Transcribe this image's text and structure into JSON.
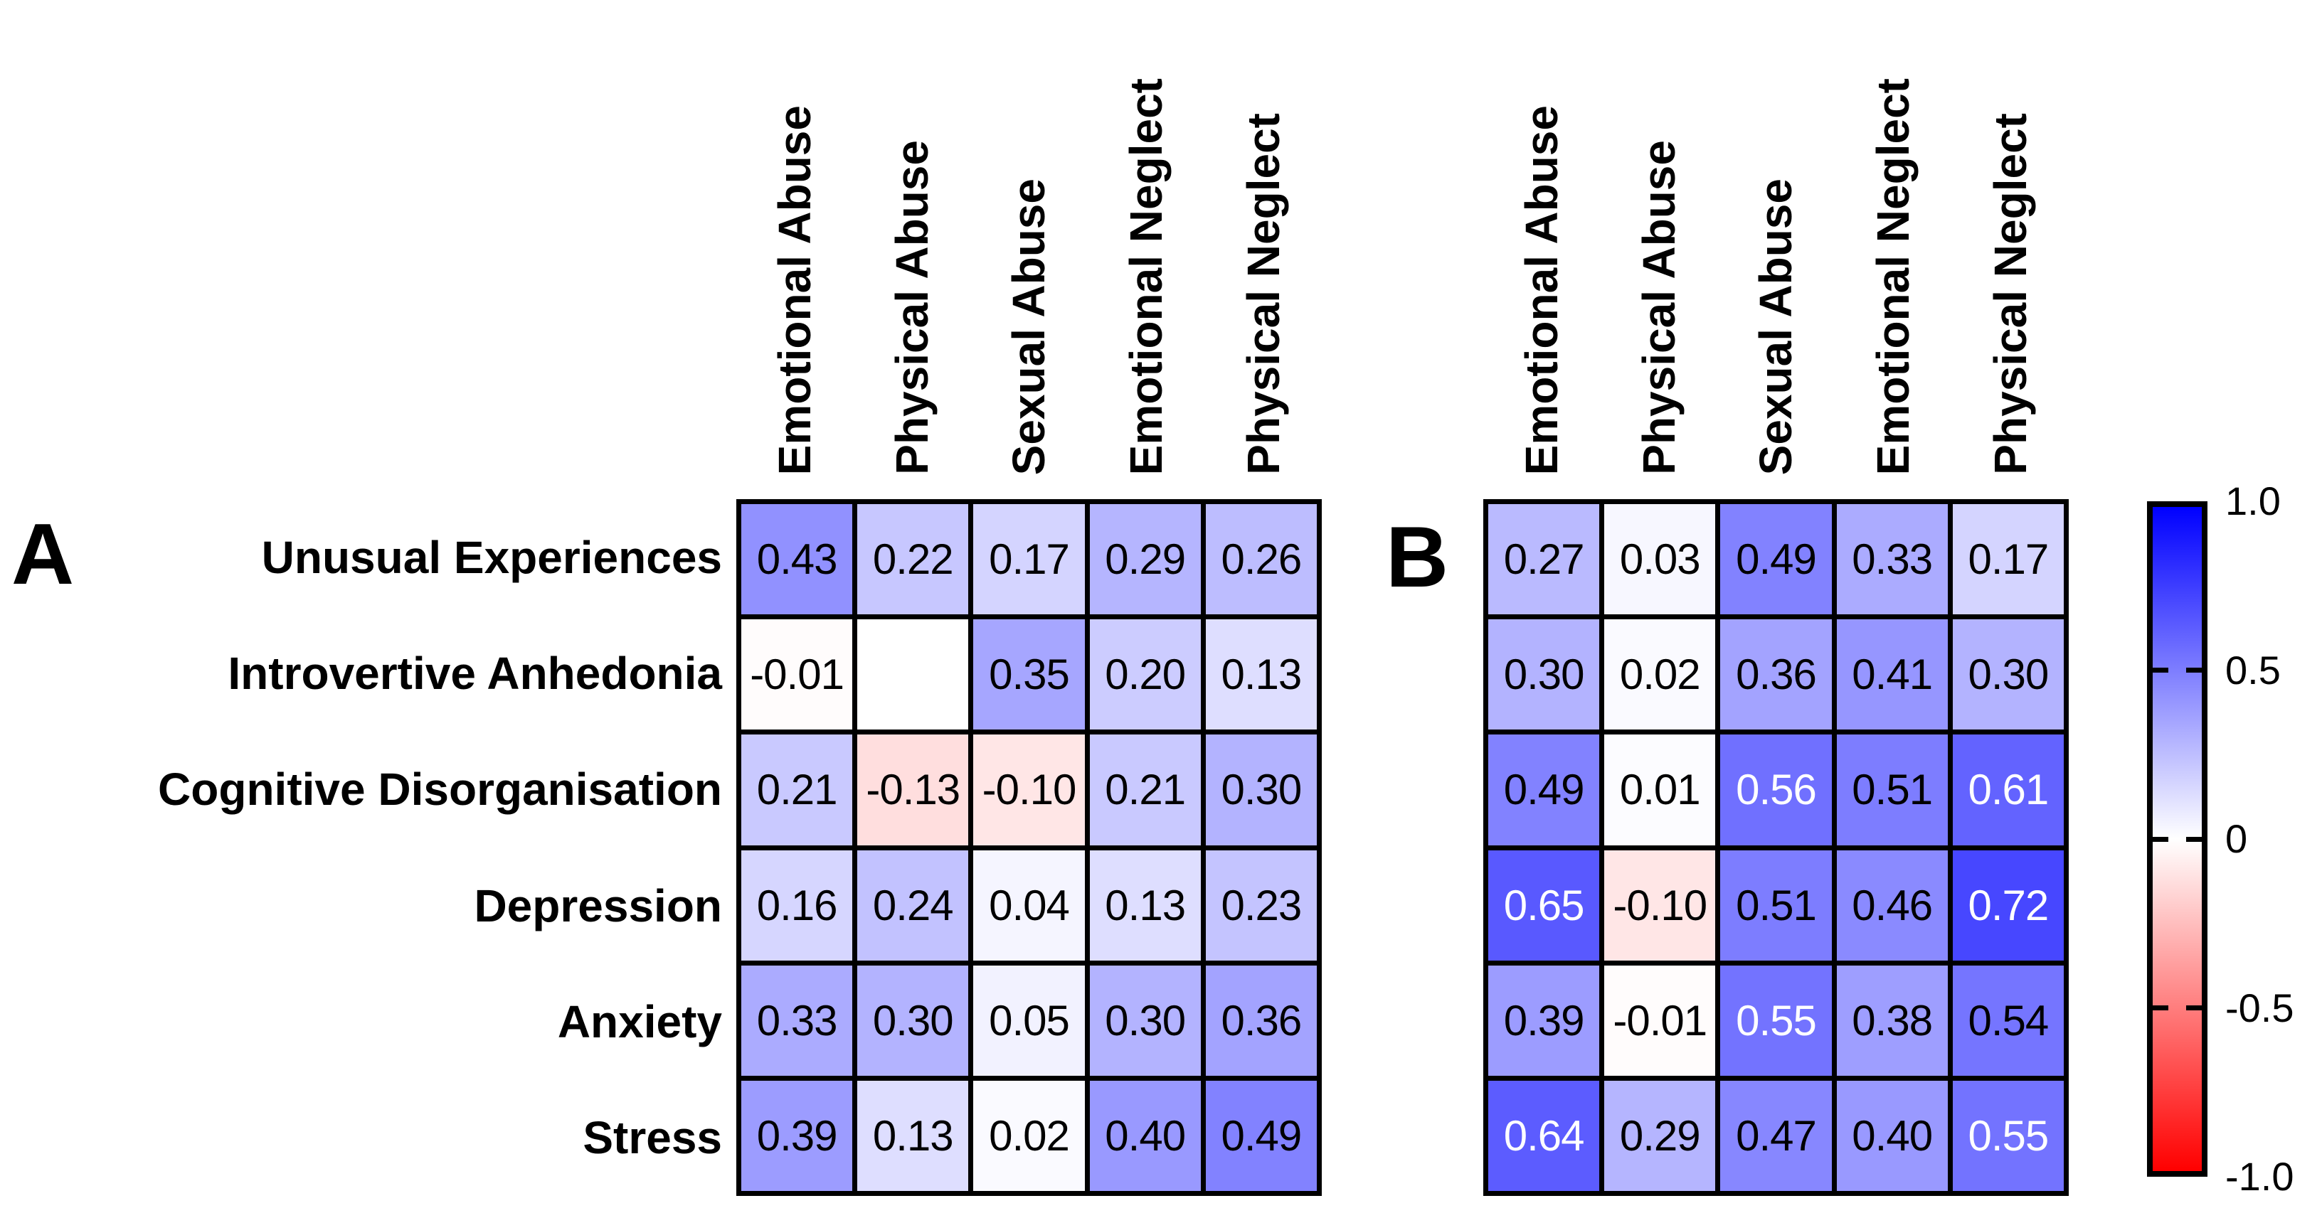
{
  "figure_type": "correlation-heatmap-figure",
  "panel_letters": {
    "a": "A",
    "b": "B"
  },
  "chart_data": [
    {
      "type": "heatmap",
      "panel_label": "A",
      "x_categories": [
        "Emotional Abuse",
        "Physical Abuse",
        "Sexual Abuse",
        "Emotional Neglect",
        "Physical Neglect"
      ],
      "y_categories": [
        "Unusual Experiences",
        "Introvertive Anhedonia",
        "Cognitive Disorganisation",
        "Depression",
        "Anxiety",
        "Stress"
      ],
      "values": [
        [
          0.43,
          0.22,
          0.17,
          0.29,
          0.26
        ],
        [
          -0.01,
          null,
          0.35,
          0.2,
          0.13
        ],
        [
          0.21,
          -0.13,
          -0.1,
          0.21,
          0.3
        ],
        [
          0.16,
          0.24,
          0.04,
          0.13,
          0.23
        ],
        [
          0.33,
          0.3,
          0.05,
          0.3,
          0.36
        ],
        [
          0.39,
          0.13,
          0.02,
          0.4,
          0.49
        ]
      ]
    },
    {
      "type": "heatmap",
      "panel_label": "B",
      "x_categories": [
        "Emotional Abuse",
        "Physical Abuse",
        "Sexual Abuse",
        "Emotional Neglect",
        "Physical Neglect"
      ],
      "y_categories": [
        "Unusual Experiences",
        "Introvertive Anhedonia",
        "Cognitive Disorganisation",
        "Depression",
        "Anxiety",
        "Stress"
      ],
      "values": [
        [
          0.27,
          0.03,
          0.49,
          0.33,
          0.17
        ],
        [
          0.3,
          0.02,
          0.36,
          0.41,
          0.3
        ],
        [
          0.49,
          0.01,
          0.56,
          0.51,
          0.61
        ],
        [
          0.65,
          -0.1,
          0.51,
          0.46,
          0.72
        ],
        [
          0.39,
          -0.01,
          0.55,
          0.38,
          0.54
        ],
        [
          0.64,
          0.29,
          0.47,
          0.4,
          0.55
        ]
      ]
    }
  ],
  "colorbar": {
    "min": -1,
    "max": 1,
    "tick_labels": [
      "1.0",
      "0.5",
      "0",
      "-0.5",
      "-1.0"
    ],
    "tick_values": [
      1,
      0.5,
      0,
      -0.5,
      -1
    ],
    "max_color": "#0000ff",
    "mid_color": "#ffffff",
    "min_color": "#ff0000"
  },
  "style": {
    "decimals": 2,
    "white_text_threshold": 0.55,
    "grid_line_color": "#000000",
    "cell_text_color": "#000000",
    "cell_text_color_strong": "#ffffff",
    "missing_cell_color": "#ffffff"
  }
}
